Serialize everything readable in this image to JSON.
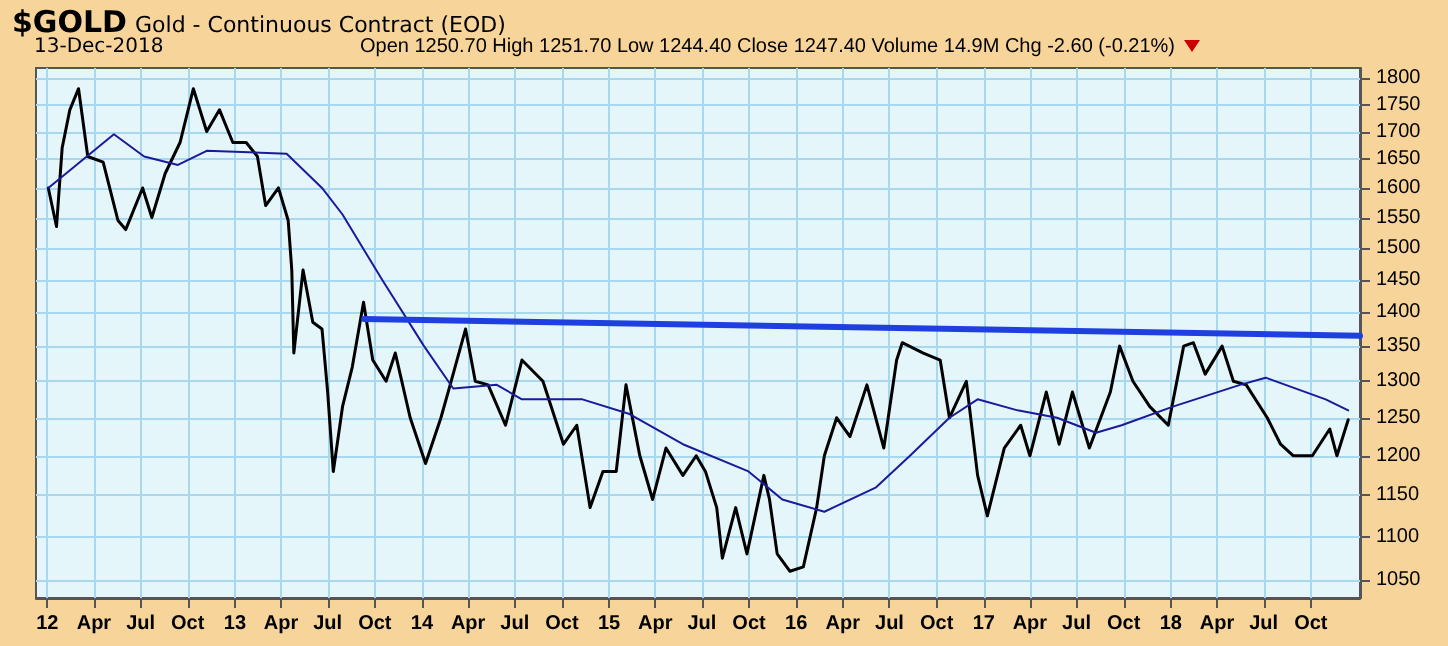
{
  "chart_data": {
    "type": "line",
    "title": "$GOLD Gold - Continuous Contract (EOD)",
    "subtitle": "13-Dec-2018",
    "annotations": [
      "Open 1250.70 High 1251.70 Low 1244.40 Close 1247.40 Volume 14.9M Chg -2.60 (-0.21%)"
    ],
    "log": true,
    "grid": true,
    "marker": "none",
    "line_style": "solid",
    "xlim": [
      "2011-12-10",
      "2019-01-05"
    ],
    "xticks": [
      {
        "value": "2012-01-01",
        "label": "12"
      },
      {
        "value": "2012-04-01",
        "label": "Apr"
      },
      {
        "value": "2012-07-01",
        "label": "Jul"
      },
      {
        "value": "2012-10-01",
        "label": "Oct"
      },
      {
        "value": "2013-01-01",
        "label": "13"
      },
      {
        "value": "2013-04-01",
        "label": "Apr"
      },
      {
        "value": "2013-07-01",
        "label": "Jul"
      },
      {
        "value": "2013-10-01",
        "label": "Oct"
      },
      {
        "value": "2014-01-01",
        "label": "14"
      },
      {
        "value": "2014-04-01",
        "label": "Apr"
      },
      {
        "value": "2014-07-01",
        "label": "Jul"
      },
      {
        "value": "2014-10-01",
        "label": "Oct"
      },
      {
        "value": "2015-01-01",
        "label": "15"
      },
      {
        "value": "2015-04-01",
        "label": "Apr"
      },
      {
        "value": "2015-07-01",
        "label": "Jul"
      },
      {
        "value": "2015-10-01",
        "label": "Oct"
      },
      {
        "value": "2016-01-01",
        "label": "16"
      },
      {
        "value": "2016-04-01",
        "label": "Apr"
      },
      {
        "value": "2016-07-01",
        "label": "Jul"
      },
      {
        "value": "2016-10-01",
        "label": "Oct"
      },
      {
        "value": "2017-01-01",
        "label": "17"
      },
      {
        "value": "2017-04-01",
        "label": "Apr"
      },
      {
        "value": "2017-07-01",
        "label": "Jul"
      },
      {
        "value": "2017-10-01",
        "label": "Oct"
      },
      {
        "value": "2018-01-01",
        "label": "18"
      },
      {
        "value": "2018-04-01",
        "label": "Apr"
      },
      {
        "value": "2018-07-01",
        "label": "Jul"
      },
      {
        "value": "2018-10-01",
        "label": "Oct"
      }
    ],
    "ylim": [
      1030,
      1820
    ],
    "yticks": [
      1050,
      1100,
      1150,
      1200,
      1250,
      1300,
      1350,
      1400,
      1450,
      1500,
      1550,
      1600,
      1650,
      1700,
      1750,
      1800
    ],
    "series": [
      {
        "color": "#000000",
        "x": [
          "2012-01-03",
          "2012-01-19",
          "2012-01-30",
          "2012-02-14",
          "2012-03-02",
          "2012-03-20",
          "2012-04-19",
          "2012-05-18",
          "2012-06-02",
          "2012-07-05",
          "2012-07-23",
          "2012-08-18",
          "2012-09-16",
          "2012-10-12",
          "2012-11-07",
          "2012-12-02",
          "2012-12-28",
          "2013-01-23",
          "2013-02-14",
          "2013-03-02",
          "2013-03-27",
          "2013-04-15",
          "2013-04-22",
          "2013-04-26",
          "2013-05-14",
          "2013-06-02",
          "2013-06-20",
          "2013-07-01",
          "2013-07-12",
          "2013-07-30",
          "2013-08-18",
          "2013-09-09",
          "2013-09-27",
          "2013-10-23",
          "2013-11-10",
          "2013-12-09",
          "2014-01-08",
          "2014-02-07",
          "2014-02-25",
          "2014-03-27",
          "2014-04-15",
          "2014-05-10",
          "2014-06-13",
          "2014-07-15",
          "2014-08-25",
          "2014-10-04",
          "2014-10-30",
          "2014-11-25",
          "2014-12-20",
          "2015-01-15",
          "2015-02-03",
          "2015-03-02",
          "2015-03-27",
          "2015-04-22",
          "2015-05-25",
          "2015-06-20",
          "2015-07-08",
          "2015-07-30",
          "2015-08-10",
          "2015-09-05",
          "2015-09-27",
          "2015-10-30",
          "2015-11-10",
          "2015-11-25",
          "2015-12-20",
          "2016-01-15",
          "2016-02-10",
          "2016-02-25",
          "2016-03-20",
          "2016-04-15",
          "2016-05-18",
          "2016-06-20",
          "2016-07-15",
          "2016-07-26",
          "2016-09-05",
          "2016-10-08",
          "2016-10-26",
          "2016-11-28",
          "2016-12-20",
          "2017-01-08",
          "2017-02-10",
          "2017-03-14",
          "2017-04-01",
          "2017-05-03",
          "2017-05-28",
          "2017-06-23",
          "2017-07-26",
          "2017-09-05",
          "2017-09-23",
          "2017-10-19",
          "2017-11-21",
          "2017-12-27",
          "2018-01-26",
          "2018-02-14",
          "2018-03-09",
          "2018-04-11",
          "2018-05-03",
          "2018-05-28",
          "2018-07-08",
          "2018-08-03",
          "2018-08-28",
          "2018-10-04",
          "2018-11-07",
          "2018-11-21",
          "2018-12-13"
        ],
        "values": [
          1600,
          1535,
          1670,
          1740,
          1780,
          1655,
          1645,
          1545,
          1530,
          1600,
          1550,
          1625,
          1680,
          1780,
          1700,
          1740,
          1680,
          1680,
          1655,
          1570,
          1600,
          1545,
          1465,
          1340,
          1465,
          1385,
          1375,
          1285,
          1180,
          1265,
          1320,
          1415,
          1330,
          1300,
          1340,
          1250,
          1190,
          1250,
          1295,
          1375,
          1300,
          1295,
          1240,
          1330,
          1300,
          1215,
          1240,
          1135,
          1180,
          1180,
          1295,
          1200,
          1145,
          1210,
          1175,
          1200,
          1180,
          1135,
          1075,
          1135,
          1080,
          1175,
          1145,
          1080,
          1060,
          1065,
          1135,
          1200,
          1250,
          1225,
          1295,
          1210,
          1330,
          1355,
          1340,
          1330,
          1250,
          1300,
          1175,
          1125,
          1210,
          1240,
          1200,
          1285,
          1215,
          1285,
          1210,
          1285,
          1350,
          1300,
          1265,
          1240,
          1350,
          1355,
          1310,
          1350,
          1300,
          1295,
          1250,
          1215,
          1200,
          1200,
          1235,
          1200,
          1247.4
        ]
      },
      {
        "color": "#1a1a9a",
        "x": [
          "2012-01-03",
          "2012-05-10",
          "2012-07-08",
          "2012-09-12",
          "2012-11-07",
          "2013-04-12",
          "2013-06-20",
          "2013-07-30",
          "2013-10-15",
          "2014-01-05",
          "2014-03-03",
          "2014-05-27",
          "2014-07-15",
          "2014-11-10",
          "2015-02-10",
          "2015-05-25",
          "2015-09-30",
          "2015-12-05",
          "2016-02-25",
          "2016-06-05",
          "2016-08-10",
          "2016-10-26",
          "2016-12-20",
          "2017-03-08",
          "2017-05-24",
          "2017-08-08",
          "2017-09-27",
          "2018-01-05",
          "2018-05-16",
          "2018-07-05",
          "2018-10-30",
          "2018-12-13"
        ],
        "values": [
          1600,
          1695,
          1655,
          1640,
          1665,
          1660,
          1600,
          1555,
          1450,
          1350,
          1290,
          1295,
          1275,
          1275,
          1255,
          1215,
          1180,
          1145,
          1130,
          1160,
          1200,
          1250,
          1275,
          1260,
          1250,
          1230,
          1240,
          1265,
          1295,
          1305,
          1275,
          1260
        ]
      },
      {
        "color": "#1f3fe0",
        "x": [
          "2013-09-10",
          "2019-01-05"
        ],
        "values": [
          1390,
          1365
        ]
      }
    ]
  }
}
